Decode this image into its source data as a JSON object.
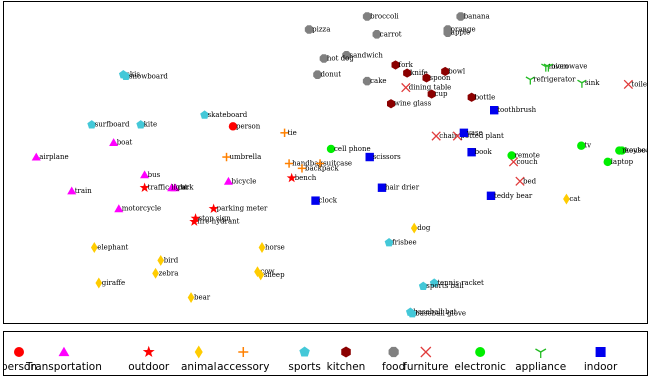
{
  "chart_data": {
    "type": "scatter",
    "title": "",
    "xlabel": "",
    "ylabel": "",
    "axes_visible": false,
    "grid": false,
    "legend_placement": "bottom",
    "xlim": [
      0,
      100
    ],
    "ylim": [
      0,
      100
    ],
    "series": [
      {
        "name": "person",
        "marker": "circle",
        "color": "#ff0000",
        "points": [
          {
            "label": "person",
            "x": 35.5,
            "y": 61.5
          }
        ]
      },
      {
        "name": "Transportation",
        "marker": "triangle",
        "color": "#ff00ff",
        "points": [
          {
            "label": "airplane",
            "x": 5.0,
            "y": 52.0
          },
          {
            "label": "boat",
            "x": 17.0,
            "y": 56.5
          },
          {
            "label": "bus",
            "x": 21.8,
            "y": 46.5
          },
          {
            "label": "truck",
            "x": 26.0,
            "y": 42.5
          },
          {
            "label": "car",
            "x": 26.5,
            "y": 42.5
          },
          {
            "label": "train",
            "x": 10.5,
            "y": 41.5
          },
          {
            "label": "bicycle",
            "x": 34.8,
            "y": 44.5
          },
          {
            "label": "motorcycle",
            "x": 17.8,
            "y": 36.0
          }
        ]
      },
      {
        "name": "outdoor",
        "marker": "star",
        "color": "#ff0000",
        "points": [
          {
            "label": "traffic light",
            "x": 21.8,
            "y": 42.5
          },
          {
            "label": "bench",
            "x": 44.6,
            "y": 45.5
          },
          {
            "label": "parking meter",
            "x": 32.5,
            "y": 36.0
          },
          {
            "label": "stop sign",
            "x": 29.7,
            "y": 33.0
          },
          {
            "label": "fire hydrant",
            "x": 29.5,
            "y": 32.0
          }
        ]
      },
      {
        "name": "animal",
        "marker": "diamond",
        "color": "#ffcc00",
        "points": [
          {
            "label": "elephant",
            "x": 14.0,
            "y": 24.0
          },
          {
            "label": "bird",
            "x": 24.3,
            "y": 20.0
          },
          {
            "label": "zebra",
            "x": 23.5,
            "y": 16.0
          },
          {
            "label": "giraffe",
            "x": 14.7,
            "y": 13.0
          },
          {
            "label": "bear",
            "x": 29.0,
            "y": 8.5
          },
          {
            "label": "horse",
            "x": 40.0,
            "y": 24.0
          },
          {
            "label": "cow",
            "x": 39.3,
            "y": 16.5
          },
          {
            "label": "sheep",
            "x": 39.8,
            "y": 15.5
          },
          {
            "label": "dog",
            "x": 63.6,
            "y": 30.0
          },
          {
            "label": "cat",
            "x": 87.2,
            "y": 39.0
          }
        ]
      },
      {
        "name": "accessory",
        "marker": "plus",
        "color": "#ff8000",
        "points": [
          {
            "label": "tie",
            "x": 43.5,
            "y": 59.5
          },
          {
            "label": "umbrella",
            "x": 34.5,
            "y": 52.0
          },
          {
            "label": "handbag",
            "x": 44.2,
            "y": 50.0
          },
          {
            "label": "suitcase",
            "x": 49.0,
            "y": 50.0
          },
          {
            "label": "backpack",
            "x": 46.2,
            "y": 48.5
          }
        ]
      },
      {
        "name": "sports",
        "marker": "pentagon",
        "color": "#44c8d8",
        "points": [
          {
            "label": "skis",
            "x": 18.5,
            "y": 77.5
          },
          {
            "label": "snowboard",
            "x": 18.9,
            "y": 77.0
          },
          {
            "label": "surfboard",
            "x": 13.6,
            "y": 62.0
          },
          {
            "label": "kite",
            "x": 21.2,
            "y": 62.0
          },
          {
            "label": "skateboard",
            "x": 31.1,
            "y": 65.0
          },
          {
            "label": "frisbee",
            "x": 59.7,
            "y": 25.5
          },
          {
            "label": "tennis racket",
            "x": 66.7,
            "y": 13.0
          },
          {
            "label": "sports ball",
            "x": 65.0,
            "y": 12.0
          },
          {
            "label": "baseball bat",
            "x": 63.0,
            "y": 4.0
          },
          {
            "label": "baseball glove",
            "x": 63.3,
            "y": 3.5
          }
        ]
      },
      {
        "name": "kitchen",
        "marker": "hexagon",
        "color": "#8b0000",
        "points": [
          {
            "label": "fork",
            "x": 60.7,
            "y": 80.5
          },
          {
            "label": "knife",
            "x": 62.5,
            "y": 78.0
          },
          {
            "label": "spoon",
            "x": 65.5,
            "y": 76.5
          },
          {
            "label": "bowl",
            "x": 68.4,
            "y": 78.5
          },
          {
            "label": "cup",
            "x": 66.3,
            "y": 71.5
          },
          {
            "label": "wine glass",
            "x": 60.0,
            "y": 68.5
          },
          {
            "label": "bottle",
            "x": 72.5,
            "y": 70.5
          }
        ]
      },
      {
        "name": "food",
        "marker": "octagon",
        "color": "#808080",
        "points": [
          {
            "label": "broccoli",
            "x": 56.3,
            "y": 95.5
          },
          {
            "label": "banana",
            "x": 70.8,
            "y": 95.5
          },
          {
            "label": "orange",
            "x": 68.8,
            "y": 91.5
          },
          {
            "label": "apple",
            "x": 68.8,
            "y": 90.5
          },
          {
            "label": "carrot",
            "x": 57.8,
            "y": 90.0
          },
          {
            "label": "pizza",
            "x": 47.3,
            "y": 91.5
          },
          {
            "label": "sandwich",
            "x": 53.1,
            "y": 83.5
          },
          {
            "label": "hot dog",
            "x": 49.6,
            "y": 82.5
          },
          {
            "label": "donut",
            "x": 48.6,
            "y": 77.5
          },
          {
            "label": "cake",
            "x": 56.3,
            "y": 75.5
          }
        ]
      },
      {
        "name": "furniture",
        "marker": "x",
        "color": "#e03c3c",
        "points": [
          {
            "label": "dining table",
            "x": 62.3,
            "y": 73.5
          },
          {
            "label": "chair",
            "x": 67.0,
            "y": 58.5
          },
          {
            "label": "potted plant",
            "x": 70.3,
            "y": 58.5
          },
          {
            "label": "couch",
            "x": 79.0,
            "y": 50.5
          },
          {
            "label": "bed",
            "x": 80.0,
            "y": 44.5
          },
          {
            "label": "toilet",
            "x": 96.8,
            "y": 74.5
          }
        ]
      },
      {
        "name": "electronic",
        "marker": "circle",
        "color": "#00ee00",
        "points": [
          {
            "label": "cell phone",
            "x": 50.7,
            "y": 54.5
          },
          {
            "label": "remote",
            "x": 78.7,
            "y": 52.5
          },
          {
            "label": "tv",
            "x": 89.5,
            "y": 55.5
          },
          {
            "label": "laptop",
            "x": 93.6,
            "y": 50.5
          },
          {
            "label": "keyboard",
            "x": 95.8,
            "y": 54.0
          },
          {
            "label": "mouse",
            "x": 95.4,
            "y": 54.0
          }
        ]
      },
      {
        "name": "appliance",
        "marker": "tri_down",
        "color": "#22bb22",
        "points": [
          {
            "label": "microwave",
            "x": 84.0,
            "y": 80.0
          },
          {
            "label": "oven",
            "x": 84.4,
            "y": 80.0
          },
          {
            "label": "refrigerator",
            "x": 81.6,
            "y": 76.0
          },
          {
            "label": "sink",
            "x": 89.6,
            "y": 75.0
          }
        ]
      },
      {
        "name": "indoor",
        "marker": "square",
        "color": "#0000ee",
        "points": [
          {
            "label": "toothbrush",
            "x": 76.0,
            "y": 66.5
          },
          {
            "label": "vase",
            "x": 71.3,
            "y": 59.5
          },
          {
            "label": "book",
            "x": 72.5,
            "y": 53.5
          },
          {
            "label": "scissors",
            "x": 56.7,
            "y": 52.0
          },
          {
            "label": "hair drier",
            "x": 58.6,
            "y": 42.5
          },
          {
            "label": "clock",
            "x": 48.3,
            "y": 38.5
          },
          {
            "label": "teddy bear",
            "x": 75.5,
            "y": 40.0
          }
        ]
      }
    ]
  }
}
